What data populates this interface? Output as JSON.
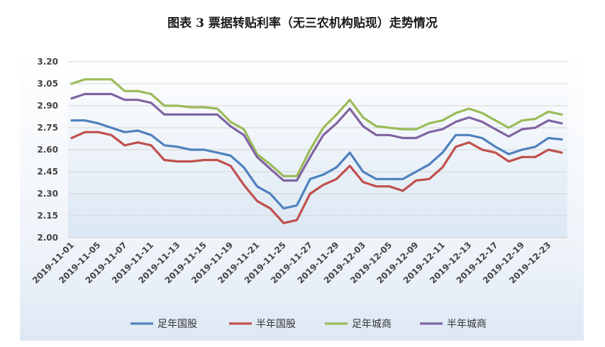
{
  "chart_data": {
    "type": "line",
    "title": "图表 3 票据转贴利率（无三农机构贴现）走势情况",
    "xlabel": "",
    "ylabel": "",
    "ylim": [
      2.0,
      3.2
    ],
    "yticks": [
      "3.20",
      "3.05",
      "2.90",
      "2.75",
      "2.60",
      "2.45",
      "2.30",
      "2.15",
      "2.00"
    ],
    "grid": true,
    "legend_position": "bottom",
    "x_tick_labels": [
      "2019-11-01",
      "2019-11-05",
      "2019-11-07",
      "2019-11-11",
      "2019-11-13",
      "2019-11-15",
      "2019-11-19",
      "2019-11-21",
      "2019-11-25",
      "2019-11-27",
      "2019-11-29",
      "2019-12-03",
      "2019-12-05",
      "2019-12-09",
      "2019-12-11",
      "2019-12-13",
      "2019-12-17",
      "2019-12-19",
      "2019-12-23"
    ],
    "point_count": 38,
    "series": [
      {
        "name": "足年国股",
        "color": "#4f81bd",
        "values": [
          2.8,
          2.8,
          2.78,
          2.75,
          2.72,
          2.73,
          2.7,
          2.63,
          2.62,
          2.6,
          2.6,
          2.58,
          2.56,
          2.48,
          2.35,
          2.3,
          2.2,
          2.22,
          2.4,
          2.43,
          2.48,
          2.58,
          2.45,
          2.4,
          2.4,
          2.4,
          2.45,
          2.5,
          2.58,
          2.7,
          2.7,
          2.68,
          2.62,
          2.57,
          2.6,
          2.62,
          2.68,
          2.67
        ]
      },
      {
        "name": "半年国股",
        "color": "#c0504d",
        "values": [
          2.68,
          2.72,
          2.72,
          2.7,
          2.63,
          2.65,
          2.63,
          2.53,
          2.52,
          2.52,
          2.53,
          2.53,
          2.49,
          2.36,
          2.25,
          2.2,
          2.1,
          2.12,
          2.3,
          2.36,
          2.4,
          2.49,
          2.38,
          2.35,
          2.35,
          2.32,
          2.39,
          2.4,
          2.48,
          2.62,
          2.65,
          2.6,
          2.58,
          2.52,
          2.55,
          2.55,
          2.6,
          2.58
        ]
      },
      {
        "name": "足年城商",
        "color": "#9bbb59",
        "values": [
          3.05,
          3.08,
          3.08,
          3.08,
          3.0,
          3.0,
          2.98,
          2.9,
          2.9,
          2.89,
          2.89,
          2.88,
          2.79,
          2.74,
          2.57,
          2.5,
          2.42,
          2.42,
          2.6,
          2.75,
          2.84,
          2.94,
          2.82,
          2.76,
          2.75,
          2.74,
          2.74,
          2.78,
          2.8,
          2.85,
          2.88,
          2.85,
          2.8,
          2.75,
          2.8,
          2.81,
          2.86,
          2.84
        ]
      },
      {
        "name": "半年城商",
        "color": "#8064a2",
        "values": [
          2.95,
          2.98,
          2.98,
          2.98,
          2.94,
          2.94,
          2.92,
          2.84,
          2.84,
          2.84,
          2.84,
          2.84,
          2.76,
          2.7,
          2.55,
          2.47,
          2.39,
          2.39,
          2.55,
          2.7,
          2.78,
          2.88,
          2.76,
          2.7,
          2.7,
          2.68,
          2.68,
          2.72,
          2.74,
          2.79,
          2.82,
          2.79,
          2.74,
          2.69,
          2.74,
          2.75,
          2.8,
          2.78
        ]
      }
    ]
  }
}
